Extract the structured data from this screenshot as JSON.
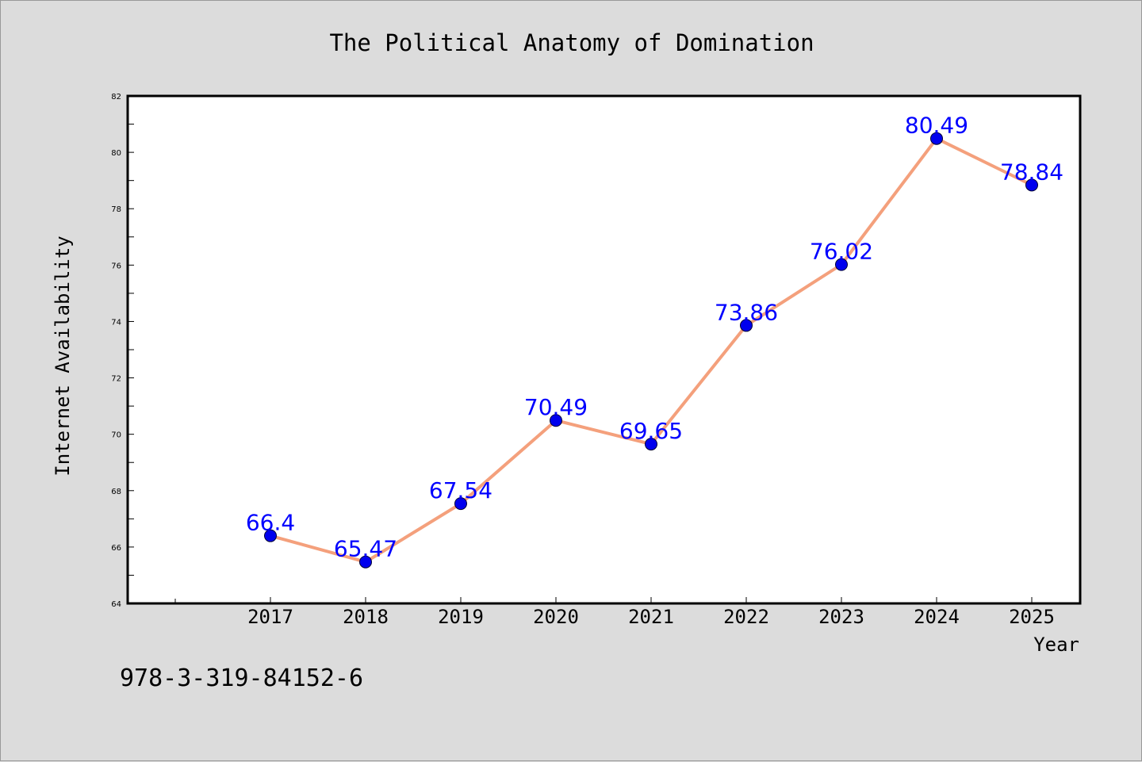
{
  "chart_data": {
    "type": "line",
    "title": "The Political Anatomy of Domination",
    "xlabel": "Year",
    "ylabel": "Internet Availability",
    "categories": [
      "2017",
      "2018",
      "2019",
      "2020",
      "2021",
      "2022",
      "2023",
      "2024",
      "2025"
    ],
    "series": [
      {
        "values": [
          66.4,
          65.47,
          67.54,
          70.49,
          69.65,
          73.86,
          76.02,
          80.49,
          78.84
        ],
        "labels": [
          "66.4",
          "65.47",
          "67.54",
          "70.49",
          "69.65",
          "73.86",
          "76.02",
          "80.49",
          "78.84"
        ]
      }
    ],
    "ylim": [
      64,
      82
    ],
    "yticks": [
      "64",
      "66",
      "68",
      "70",
      "72",
      "74",
      "76",
      "78",
      "80",
      "82"
    ],
    "grid": false,
    "legend": "none"
  },
  "footer_text": "978-3-319-84152-6",
  "colors": {
    "background": "#dcdcdc",
    "plot_background": "#ffffff",
    "line": "#f4a07c",
    "marker": "#0000ee",
    "label": "#0000ff",
    "text": "#000000"
  }
}
